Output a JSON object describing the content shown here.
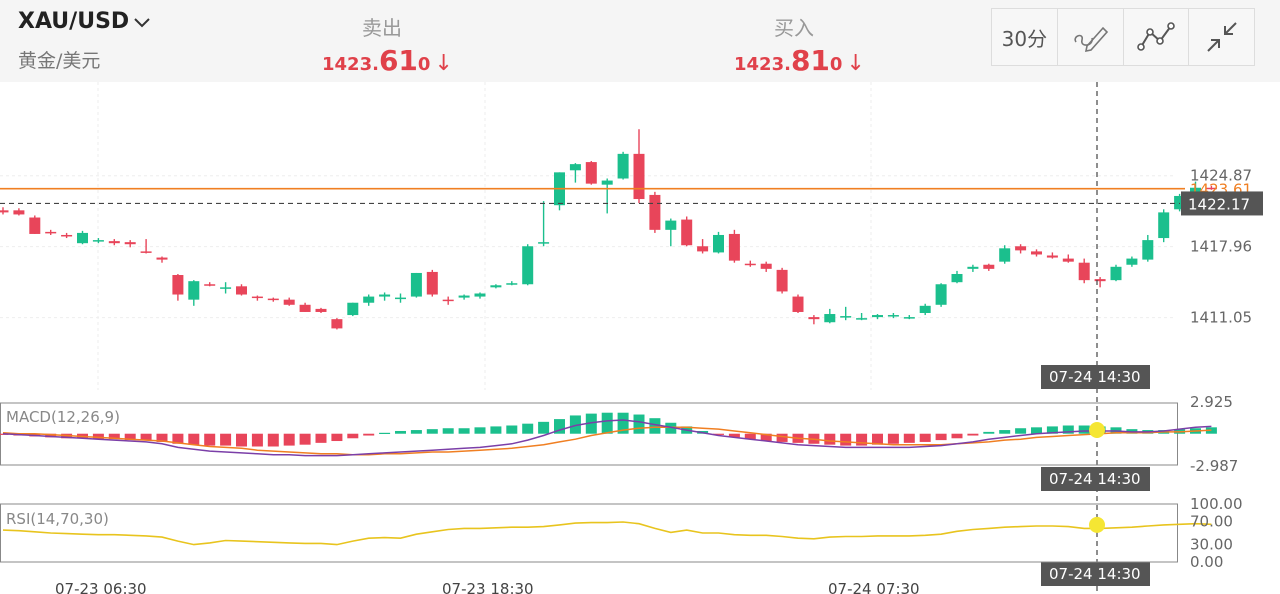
{
  "header": {
    "symbol": "XAU/USD",
    "symbol_sub": "黄金/美元",
    "sell": {
      "label": "卖出",
      "p1": "1423.",
      "p2": "61",
      "p3": "0",
      "arrow": "↓"
    },
    "buy": {
      "label": "买入",
      "p1": "1423.",
      "p2": "81",
      "p3": "0",
      "arrow": "↓"
    },
    "toolbar": {
      "interval": "30分",
      "icons": [
        "draw-pen-icon",
        "indicator-line-icon",
        "collapse-arrows-icon"
      ]
    }
  },
  "colors": {
    "up": "#1bbf8d",
    "down": "#e8455a",
    "price_line": "#f07f22",
    "dif": "#7b3fa8",
    "dea": "#f07f22",
    "rsi": "#e8c41e",
    "marker": "#f5e633"
  },
  "chart_data": [
    {
      "type": "candlestick",
      "candles": [
        [
          1421.5,
          1421.8,
          1421.1,
          1421.3
        ],
        [
          1421.5,
          1421.7,
          1421.0,
          1421.1
        ],
        [
          1420.8,
          1421.0,
          1419.2,
          1419.2
        ],
        [
          1419.4,
          1419.6,
          1419.1,
          1419.3
        ],
        [
          1419.1,
          1419.3,
          1418.8,
          1419.0
        ],
        [
          1418.3,
          1419.5,
          1418.2,
          1419.3
        ],
        [
          1418.6,
          1418.8,
          1418.3,
          1418.6
        ],
        [
          1418.5,
          1418.7,
          1418.1,
          1418.3
        ],
        [
          1418.4,
          1418.6,
          1417.9,
          1418.2
        ],
        [
          1417.5,
          1418.7,
          1417.3,
          1417.4
        ],
        [
          1416.9,
          1417.0,
          1416.4,
          1416.7
        ],
        [
          1415.2,
          1415.3,
          1412.7,
          1413.3
        ],
        [
          1412.8,
          1414.7,
          1412.2,
          1414.6
        ],
        [
          1414.3,
          1414.5,
          1414.1,
          1414.2
        ],
        [
          1413.9,
          1414.5,
          1413.4,
          1414.0
        ],
        [
          1414.1,
          1414.3,
          1413.2,
          1413.3
        ],
        [
          1413.1,
          1413.2,
          1412.7,
          1413.0
        ],
        [
          1412.9,
          1413.0,
          1412.6,
          1412.8
        ],
        [
          1412.8,
          1413.0,
          1412.2,
          1412.3
        ],
        [
          1412.3,
          1412.5,
          1411.6,
          1411.6
        ],
        [
          1411.9,
          1412.0,
          1411.5,
          1411.6
        ],
        [
          1410.9,
          1411.0,
          1409.9,
          1410.0
        ],
        [
          1411.3,
          1412.5,
          1411.2,
          1412.5
        ],
        [
          1412.5,
          1413.3,
          1412.2,
          1413.1
        ],
        [
          1413.1,
          1413.5,
          1412.7,
          1413.3
        ],
        [
          1412.9,
          1413.4,
          1412.5,
          1413.0
        ],
        [
          1413.1,
          1415.4,
          1413.0,
          1415.4
        ],
        [
          1415.5,
          1415.7,
          1413.1,
          1413.3
        ],
        [
          1412.8,
          1413.1,
          1412.3,
          1412.7
        ],
        [
          1413.0,
          1413.3,
          1412.8,
          1413.2
        ],
        [
          1413.1,
          1413.5,
          1412.9,
          1413.4
        ],
        [
          1414.0,
          1414.3,
          1413.9,
          1414.2
        ],
        [
          1414.3,
          1414.6,
          1414.2,
          1414.4
        ],
        [
          1414.3,
          1418.2,
          1414.2,
          1418.0
        ],
        [
          1418.3,
          1422.4,
          1418.0,
          1418.4
        ],
        [
          1422.0,
          1425.2,
          1421.5,
          1425.2
        ],
        [
          1425.4,
          1426.1,
          1424.2,
          1426.0
        ],
        [
          1426.2,
          1426.3,
          1424.0,
          1424.1
        ],
        [
          1424.0,
          1424.6,
          1421.2,
          1424.4
        ],
        [
          1424.6,
          1427.2,
          1424.5,
          1427.0
        ],
        [
          1427.0,
          1429.4,
          1422.2,
          1422.6
        ],
        [
          1423.0,
          1423.3,
          1419.3,
          1419.6
        ],
        [
          1419.6,
          1420.7,
          1418.0,
          1420.5
        ],
        [
          1420.6,
          1420.9,
          1418.0,
          1418.1
        ],
        [
          1418.0,
          1418.7,
          1417.3,
          1417.5
        ],
        [
          1417.4,
          1419.4,
          1417.3,
          1419.1
        ],
        [
          1419.2,
          1419.6,
          1416.4,
          1416.6
        ],
        [
          1416.3,
          1416.6,
          1416.0,
          1416.2
        ],
        [
          1416.3,
          1416.5,
          1415.5,
          1415.8
        ],
        [
          1415.7,
          1415.9,
          1413.4,
          1413.6
        ],
        [
          1413.1,
          1413.3,
          1411.5,
          1411.6
        ],
        [
          1411.1,
          1411.3,
          1410.4,
          1410.9
        ],
        [
          1410.6,
          1411.9,
          1410.5,
          1411.4
        ],
        [
          1411.1,
          1412.1,
          1410.8,
          1411.2
        ],
        [
          1410.9,
          1411.5,
          1410.8,
          1411.0
        ],
        [
          1411.1,
          1411.4,
          1410.9,
          1411.3
        ],
        [
          1411.2,
          1411.5,
          1411.0,
          1411.3
        ],
        [
          1411.0,
          1411.3,
          1410.9,
          1411.1
        ],
        [
          1411.5,
          1412.4,
          1411.3,
          1412.2
        ],
        [
          1412.3,
          1414.4,
          1412.1,
          1414.3
        ],
        [
          1414.5,
          1415.6,
          1414.4,
          1415.3
        ],
        [
          1415.8,
          1416.2,
          1415.5,
          1416.0
        ],
        [
          1416.2,
          1416.3,
          1415.6,
          1415.8
        ],
        [
          1416.5,
          1418.1,
          1416.3,
          1417.8
        ],
        [
          1418.0,
          1418.2,
          1417.3,
          1417.6
        ],
        [
          1417.5,
          1417.7,
          1417.0,
          1417.2
        ],
        [
          1417.1,
          1417.4,
          1416.8,
          1416.9
        ],
        [
          1416.8,
          1417.2,
          1416.4,
          1416.5
        ],
        [
          1416.4,
          1416.8,
          1414.4,
          1414.7
        ],
        [
          1414.8,
          1415.0,
          1414.0,
          1414.6
        ],
        [
          1414.7,
          1416.2,
          1414.6,
          1416.0
        ],
        [
          1416.2,
          1417.0,
          1416.0,
          1416.8
        ],
        [
          1416.7,
          1419.1,
          1416.5,
          1418.6
        ],
        [
          1418.8,
          1421.6,
          1418.4,
          1421.3
        ],
        [
          1421.6,
          1423.1,
          1421.4,
          1422.9
        ],
        [
          1423.1,
          1424.3,
          1423.0,
          1423.7
        ],
        [
          1423.7,
          1423.9,
          1423.5,
          1423.6
        ]
      ],
      "last_price_line": 1423.61,
      "crosshair_value": 1422.17,
      "y_ticks": [
        1424.87,
        1417.96,
        1411.05
      ],
      "ylim": [
        1404.0,
        1434.0
      ],
      "x_ticks": [
        "07-23 06:30",
        "07-23 18:30",
        "07-24 07:30"
      ],
      "crosshair_time": "07-24 14:30",
      "grid": true
    },
    {
      "type": "bar",
      "title": "MACD(12,26,9)",
      "y_ticks": [
        2.925,
        -2.987
      ],
      "ylim": [
        -2.987,
        2.925
      ],
      "histogram": [
        -0.1,
        -0.2,
        -0.3,
        -0.4,
        -0.5,
        -0.5,
        -0.6,
        -0.6,
        -0.7,
        -0.7,
        -0.9,
        -1.1,
        -1.2,
        -1.3,
        -1.3,
        -1.4,
        -1.4,
        -1.4,
        -1.3,
        -1.2,
        -1.0,
        -0.8,
        -0.5,
        -0.2,
        0.1,
        0.3,
        0.4,
        0.5,
        0.6,
        0.6,
        0.7,
        0.8,
        0.9,
        1.1,
        1.3,
        1.6,
        2.0,
        2.2,
        2.3,
        2.3,
        2.1,
        1.7,
        1.2,
        0.8,
        0.3,
        -0.1,
        -0.4,
        -0.6,
        -0.8,
        -0.9,
        -1.0,
        -1.1,
        -1.2,
        -1.3,
        -1.3,
        -1.2,
        -1.1,
        -1.0,
        -0.9,
        -0.7,
        -0.5,
        -0.2,
        0.2,
        0.4,
        0.6,
        0.7,
        0.8,
        0.9,
        0.9,
        0.8,
        0.7,
        0.5,
        0.4,
        0.4,
        0.5,
        0.6,
        0.7
      ],
      "dif": [
        0.0,
        -0.1,
        -0.2,
        -0.3,
        -0.4,
        -0.5,
        -0.6,
        -0.7,
        -0.8,
        -0.9,
        -1.1,
        -1.5,
        -1.7,
        -1.9,
        -2.0,
        -2.1,
        -2.2,
        -2.3,
        -2.3,
        -2.4,
        -2.4,
        -2.4,
        -2.3,
        -2.2,
        -2.1,
        -2.0,
        -1.9,
        -1.8,
        -1.7,
        -1.6,
        -1.5,
        -1.3,
        -1.1,
        -0.7,
        -0.2,
        0.4,
        0.9,
        1.2,
        1.4,
        1.5,
        1.3,
        1.0,
        0.7,
        0.4,
        0.1,
        -0.2,
        -0.4,
        -0.6,
        -0.8,
        -1.0,
        -1.2,
        -1.3,
        -1.4,
        -1.5,
        -1.5,
        -1.5,
        -1.5,
        -1.5,
        -1.4,
        -1.3,
        -1.1,
        -0.9,
        -0.6,
        -0.4,
        -0.2,
        0.0,
        0.1,
        0.2,
        0.3,
        0.3,
        0.3,
        0.2,
        0.2,
        0.3,
        0.5,
        0.7,
        0.8
      ],
      "dea": [
        0.1,
        0.0,
        0.0,
        -0.1,
        -0.2,
        -0.3,
        -0.4,
        -0.5,
        -0.6,
        -0.7,
        -0.8,
        -1.0,
        -1.2,
        -1.4,
        -1.5,
        -1.6,
        -1.8,
        -1.9,
        -2.0,
        -2.1,
        -2.2,
        -2.2,
        -2.3,
        -2.3,
        -2.2,
        -2.2,
        -2.1,
        -2.0,
        -2.0,
        -1.9,
        -1.8,
        -1.7,
        -1.6,
        -1.4,
        -1.2,
        -0.9,
        -0.6,
        -0.2,
        0.1,
        0.4,
        0.6,
        0.7,
        0.7,
        0.7,
        0.6,
        0.5,
        0.3,
        0.1,
        -0.1,
        -0.3,
        -0.5,
        -0.6,
        -0.8,
        -0.9,
        -1.0,
        -1.1,
        -1.2,
        -1.2,
        -1.2,
        -1.2,
        -1.1,
        -1.0,
        -0.9,
        -0.7,
        -0.6,
        -0.4,
        -0.3,
        -0.2,
        -0.1,
        0.0,
        0.1,
        0.1,
        0.1,
        0.2,
        0.2,
        0.3,
        0.4
      ],
      "crosshair_time": "07-24 14:30"
    },
    {
      "type": "line",
      "title": "RSI(14,70,30)",
      "y_ticks": [
        100.0,
        70.0,
        30.0,
        0.0
      ],
      "ylim": [
        0,
        100
      ],
      "values": [
        55,
        54,
        52,
        50,
        49,
        48,
        47,
        47,
        46,
        45,
        43,
        36,
        30,
        33,
        37,
        36,
        35,
        34,
        33,
        32,
        32,
        30,
        36,
        41,
        42,
        41,
        48,
        52,
        56,
        58,
        58,
        59,
        60,
        60,
        61,
        64,
        67,
        68,
        68,
        69,
        66,
        58,
        51,
        55,
        50,
        50,
        47,
        46,
        46,
        44,
        41,
        40,
        43,
        44,
        44,
        45,
        45,
        45,
        46,
        48,
        53,
        56,
        58,
        60,
        61,
        62,
        62,
        61,
        58,
        58,
        59,
        60,
        62,
        64,
        65,
        66,
        65
      ],
      "crosshair_time": "07-24 14:30"
    }
  ]
}
